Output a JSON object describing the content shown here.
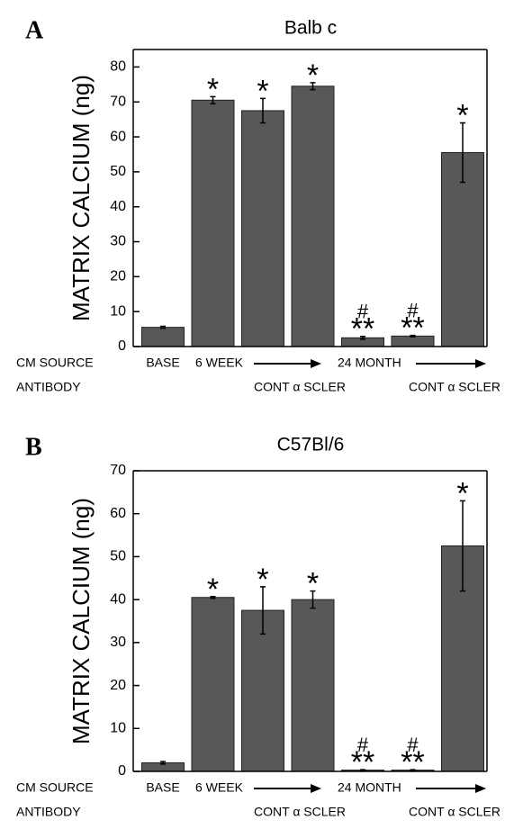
{
  "chart_data": [
    {
      "type": "bar",
      "panel_label": "A",
      "title": "Balb c",
      "y_label": "MATRIX CALCIUM (ng)",
      "categories": [
        null,
        null,
        null,
        null,
        null,
        null,
        null
      ],
      "values": [
        5.5,
        70.5,
        67.5,
        74.5,
        2.5,
        3,
        55.5
      ],
      "errors": [
        0.3,
        1,
        3.5,
        1,
        0.4,
        0.2,
        8.5
      ],
      "color": "#585858",
      "ylim": [
        0,
        85
      ],
      "yticks": [
        0,
        10,
        20,
        30,
        40,
        50,
        60,
        70,
        80
      ],
      "annotations": [
        null,
        "*",
        "*",
        "*",
        "**",
        "**",
        "*"
      ],
      "annotations_hash": [
        null,
        null,
        null,
        null,
        "#",
        "#",
        null
      ],
      "row_labels": [
        "CM SOURCE",
        "ANTIBODY"
      ],
      "source_groups": [
        "BASE",
        "6 WEEK",
        "24 MONTH"
      ],
      "antibody_groups": [
        "CONT α SCLER",
        "CONT α SCLER"
      ]
    },
    {
      "type": "bar",
      "panel_label": "B",
      "title": "C57Bl/6",
      "y_label": "MATRIX CALCIUM (ng)",
      "categories": [
        null,
        null,
        null,
        null,
        null,
        null,
        null
      ],
      "values": [
        2,
        40.5,
        37.5,
        40,
        0.3,
        0.3,
        52.5
      ],
      "errors": [
        0.3,
        0.2,
        5.5,
        2,
        0.1,
        0.1,
        10.5
      ],
      "color": "#585858",
      "ylim": [
        0,
        70
      ],
      "yticks": [
        0,
        10,
        20,
        30,
        40,
        50,
        60,
        70
      ],
      "annotations": [
        null,
        "*",
        "*",
        "*",
        "**",
        "**",
        "*"
      ],
      "annotations_hash": [
        null,
        null,
        null,
        null,
        "#",
        "#",
        null
      ],
      "row_labels": [
        "CM SOURCE",
        "ANTIBODY"
      ],
      "source_groups": [
        "BASE",
        "6 WEEK",
        "24 MONTH"
      ],
      "antibody_groups": [
        "CONT α SCLER",
        "CONT α SCLER"
      ]
    }
  ]
}
